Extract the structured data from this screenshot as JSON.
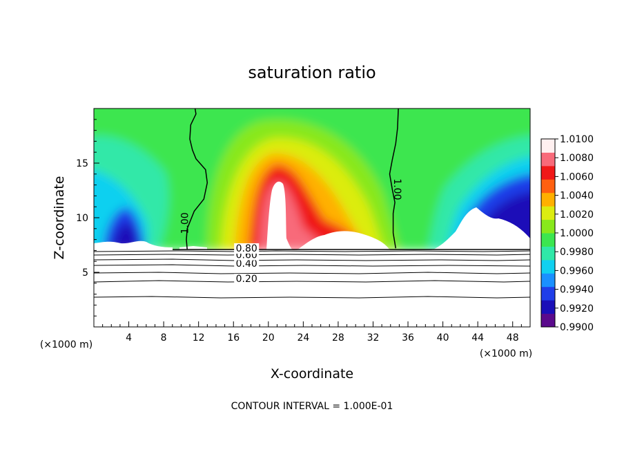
{
  "chart_data": {
    "type": "contour",
    "title": "saturation ratio",
    "xlabel": "X-coordinate",
    "ylabel": "Z-coordinate",
    "x_unit": "(×1000 m)",
    "z_unit": "(×1000 m)",
    "xlim": [
      0,
      50
    ],
    "ylim": [
      0,
      20
    ],
    "x_ticks": [
      "4",
      "8",
      "12",
      "16",
      "20",
      "24",
      "28",
      "32",
      "36",
      "40",
      "44",
      "48"
    ],
    "y_ticks": [
      "5",
      "10",
      "15"
    ],
    "footer": "CONTOUR INTERVAL = 1.000E-01",
    "colorbar": {
      "min": 0.99,
      "max": 1.01,
      "labels": [
        "1.0100",
        "1.0080",
        "1.0060",
        "1.0040",
        "1.0020",
        "1.0000",
        "0.9980",
        "0.9960",
        "0.9940",
        "0.9920",
        "0.9900"
      ],
      "colors": [
        "#5a0a8c",
        "#1a0fb8",
        "#1f3ee8",
        "#1a90ff",
        "#10d0f0",
        "#30e8a8",
        "#3ce650",
        "#88e81c",
        "#dcec10",
        "#ffb000",
        "#ff6010",
        "#f01818",
        "#f86a7a",
        "#fff0f0"
      ]
    },
    "contour_labels": [
      {
        "text": "1.00",
        "x": 10.8,
        "z": 9.5,
        "rotate": -90
      },
      {
        "text": "1.00",
        "x": 34.4,
        "z": 12.6,
        "rotate": 90
      },
      {
        "text": "0.20",
        "x": 17.5,
        "z": 4.1,
        "rotate": 0
      },
      {
        "text": "0.40",
        "x": 17.5,
        "z": 5.5,
        "rotate": 0
      },
      {
        "text": "0.60",
        "x": 17.5,
        "z": 6.3,
        "rotate": 0
      },
      {
        "text": "0.80",
        "x": 17.5,
        "z": 6.9,
        "rotate": 0
      }
    ],
    "boundary_line": [
      [
        10.7,
        7.1
      ],
      [
        10.6,
        8.0
      ],
      [
        10.7,
        9.0
      ],
      [
        11.5,
        10.6
      ],
      [
        12.6,
        11.7
      ],
      [
        13.0,
        13.2
      ],
      [
        12.8,
        14.4
      ],
      [
        11.7,
        15.4
      ],
      [
        11.3,
        16.2
      ],
      [
        11.0,
        17.2
      ],
      [
        11.1,
        18.5
      ],
      [
        11.7,
        19.5
      ],
      [
        11.6,
        20.0
      ]
    ],
    "boundary_line_2": [
      [
        34.6,
        7.2
      ],
      [
        34.3,
        8.6
      ],
      [
        34.3,
        10.4
      ],
      [
        34.5,
        11.4
      ],
      [
        34.2,
        12.6
      ],
      [
        33.9,
        14.0
      ],
      [
        34.2,
        15.3
      ],
      [
        34.6,
        16.8
      ],
      [
        34.8,
        18.2
      ],
      [
        34.9,
        20.0
      ]
    ],
    "terrain_top_z": 7.1
  }
}
